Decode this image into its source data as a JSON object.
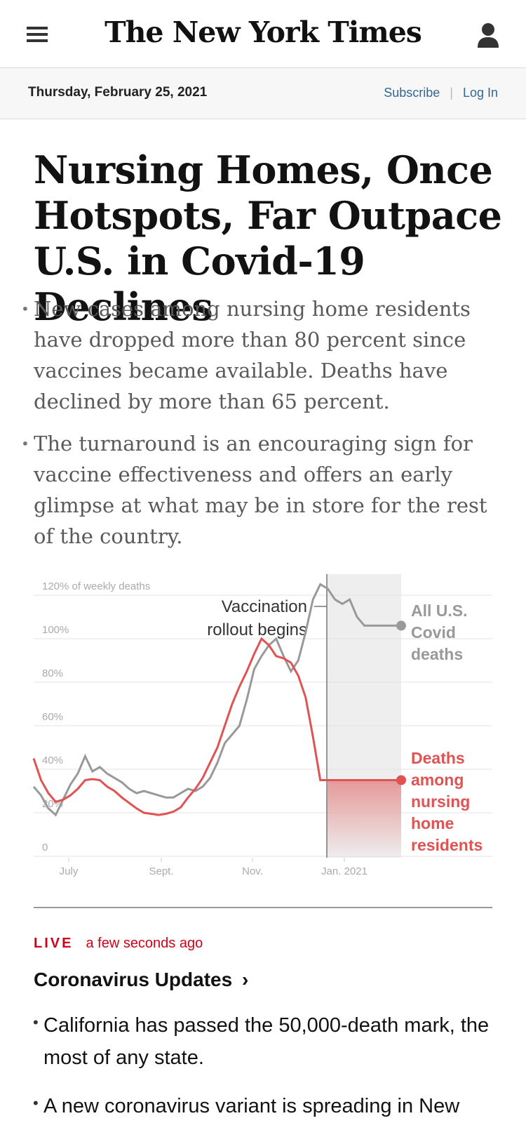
{
  "header": {
    "logo": "The New York Times",
    "date": "Thursday, February 25, 2021",
    "subscribe": "Subscribe",
    "login": "Log In"
  },
  "article": {
    "headline": "Nursing Homes, Once Hotspots, Far Outpace U.S. in Covid-19 Declines",
    "bullets": [
      "New cases among nursing home residents have dropped more than 80 percent since vaccines became available. Deaths have declined by more than 65 percent.",
      "The turnaround is an encouraging sign for vaccine effectiveness and offers an early glimpse at what may be in store for the rest of the country."
    ]
  },
  "chart_data": {
    "type": "line",
    "title": "",
    "ylabel": "% of weekly deaths",
    "ylim": [
      0,
      120
    ],
    "yticks": [
      "120% of weekly deaths",
      "100%",
      "80%",
      "60%",
      "40%",
      "20%",
      "0"
    ],
    "xticks": [
      "July",
      "Sept.",
      "Nov.",
      "Jan. 2021"
    ],
    "annotation": "Vaccination rollout begins",
    "annotation_lines": [
      "Vaccination",
      "rollout begins"
    ],
    "shaded_region": "vaccination period",
    "x": [
      0,
      2,
      4,
      6,
      8,
      10,
      12,
      14,
      16,
      18,
      20,
      22,
      24,
      26,
      28,
      30,
      32,
      34,
      36,
      38,
      40,
      42,
      44,
      46,
      48,
      50,
      52,
      54,
      56,
      58,
      60,
      62,
      64,
      66,
      68,
      70,
      72,
      74,
      76,
      78,
      80,
      82,
      84,
      86,
      88,
      90,
      92,
      94,
      96,
      98,
      100
    ],
    "series": [
      {
        "name": "All U.S. Covid deaths",
        "label_lines": [
          "All U.S.",
          "Covid",
          "deaths"
        ],
        "color": "#999999",
        "values": [
          32,
          28,
          22,
          19,
          26,
          33,
          38,
          46,
          39,
          41,
          38,
          36,
          34,
          31,
          29,
          30,
          29,
          28,
          27,
          27,
          29,
          31,
          30,
          32,
          36,
          43,
          52,
          56,
          60,
          72,
          86,
          92,
          97,
          100,
          92,
          85,
          90,
          103,
          118,
          125,
          123,
          118,
          116,
          118,
          110,
          106,
          106,
          106,
          106,
          106,
          106
        ]
      },
      {
        "name": "Deaths among nursing home residents",
        "label_lines": [
          "Deaths",
          "among",
          "nursing",
          "home",
          "residents"
        ],
        "color": "#e05353",
        "values": [
          45,
          35,
          29,
          25,
          26,
          28,
          31,
          35,
          35.5,
          35,
          32,
          30,
          27,
          24.5,
          22,
          20,
          19.5,
          19,
          19.5,
          20.5,
          22.5,
          27,
          31,
          36,
          43,
          50,
          60,
          70,
          78,
          85,
          93,
          100,
          97,
          92,
          91,
          89,
          83,
          73,
          55,
          35,
          35,
          35,
          35,
          35,
          35,
          35,
          35,
          35,
          35,
          35,
          35
        ]
      }
    ]
  },
  "live": {
    "badge": "LIVE",
    "time": "a few seconds ago",
    "title": "Coronavirus Updates",
    "arrow": "›",
    "items": [
      "California has passed the 50,000-death mark, the most of any state.",
      "A new coronavirus variant is spreading in New"
    ]
  }
}
